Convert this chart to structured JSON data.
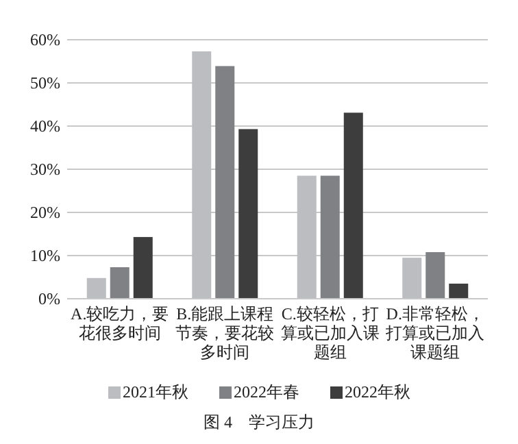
{
  "chart_data": {
    "type": "bar",
    "title": "图 4　学习压力",
    "categories": [
      "A.较吃力，要花很多时间",
      "B.能跟上课程节奏，要花较多时间",
      "C.较轻松，打算或已加入课题组",
      "D.非常轻松，打算或已加入课题组"
    ],
    "series": [
      {
        "name": "2021年秋",
        "color": "#bcbdc0",
        "values": [
          4.8,
          57.3,
          28.5,
          9.5
        ]
      },
      {
        "name": "2022年春",
        "color": "#808184",
        "values": [
          7.3,
          53.9,
          28.5,
          10.8
        ]
      },
      {
        "name": "2022年秋",
        "color": "#3d3d3d",
        "values": [
          14.3,
          39.3,
          43.1,
          3.5
        ]
      }
    ],
    "ylim": [
      0,
      60
    ],
    "yticks": [
      {
        "value": 0,
        "label": "0%"
      },
      {
        "value": 10,
        "label": "10%"
      },
      {
        "value": 20,
        "label": "20%"
      },
      {
        "value": 30,
        "label": "30%"
      },
      {
        "value": 40,
        "label": "40%"
      },
      {
        "value": 50,
        "label": "50%"
      },
      {
        "value": 60,
        "label": "60%"
      }
    ],
    "grid": "y",
    "legend": "bottom"
  }
}
